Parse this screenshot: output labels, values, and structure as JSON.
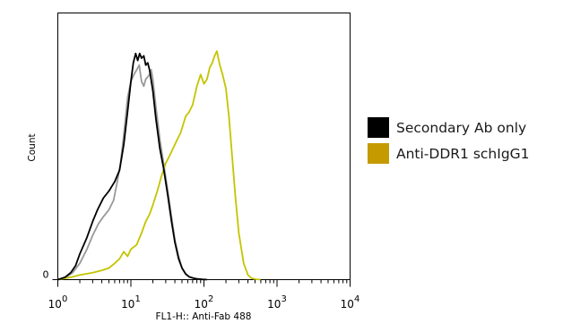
{
  "chart_data": {
    "type": "line",
    "title": "",
    "xlabel": "FL1-H:: Anti-Fab 488",
    "ylabel": "Count",
    "x_scale": "log",
    "xlim": [
      1,
      10000
    ],
    "x_ticks": [
      {
        "value": 1,
        "base": "10",
        "exp": "0"
      },
      {
        "value": 10,
        "base": "10",
        "exp": "1"
      },
      {
        "value": 100,
        "base": "10",
        "exp": "2"
      },
      {
        "value": 1000,
        "base": "10",
        "exp": "3"
      },
      {
        "value": 10000,
        "base": "10",
        "exp": "4"
      }
    ],
    "ylim": [
      0,
      100
    ],
    "y_ticks": [
      {
        "value": 0,
        "label": "0"
      }
    ],
    "grid": false,
    "legend_placement": "right",
    "series": [
      {
        "name": "Secondary Ab only",
        "color": "#000000",
        "x": [
          1.0,
          1.25,
          1.5,
          1.75,
          2.0,
          2.5,
          3.0,
          3.5,
          4.2,
          5.0,
          6.0,
          7.0,
          8.0,
          9.0,
          10.0,
          10.8,
          11.6,
          12.4,
          13.2,
          14.0,
          15.0,
          16.0,
          17.0,
          18.0,
          20.0,
          22.0,
          25.0,
          28.0,
          32.0,
          36.0,
          40.0,
          45.0,
          50.0,
          56.0,
          63.0,
          72.0,
          82.0,
          95.0,
          110.0
        ],
        "y": [
          0,
          1,
          3,
          6,
          11,
          18,
          25,
          30,
          35,
          38,
          42,
          47,
          58,
          72,
          85,
          93,
          97,
          94,
          97,
          95,
          96,
          92,
          93,
          90,
          81,
          69,
          56,
          48,
          36,
          25,
          16,
          9,
          5,
          2.5,
          1.2,
          0.6,
          0.3,
          0.1,
          0
        ]
      },
      {
        "name": "",
        "color": "#999999",
        "x": [
          1.0,
          1.3,
          1.6,
          2.0,
          2.5,
          3.0,
          3.6,
          4.2,
          5.0,
          5.8,
          6.5,
          7.2,
          8.0,
          9.0,
          10.0,
          11.0,
          12.0,
          13.0,
          14.0,
          15.0,
          16.0,
          17.0,
          18.0,
          19.0,
          20.0,
          22.0,
          25.0,
          28.0,
          32.0,
          36.0,
          40.0,
          45.0,
          50.0,
          56.0,
          63.0,
          72.0,
          82.0,
          95.0
        ],
        "y": [
          0,
          1,
          3,
          7,
          13,
          19,
          24,
          27,
          30,
          34,
          42,
          50,
          62,
          78,
          85,
          88,
          90,
          92,
          85,
          83,
          86,
          87,
          88,
          90,
          86,
          74,
          60,
          50,
          38,
          27,
          17,
          10,
          5,
          2.5,
          1.2,
          0.6,
          0.2,
          0
        ]
      },
      {
        "name": "Anti-DDR1 schIgG1",
        "color": "#c4c400",
        "x": [
          1.0,
          1.5,
          2.0,
          3.0,
          4.0,
          5.0,
          6.0,
          7.0,
          8.0,
          9.0,
          10.0,
          12.0,
          14.0,
          16.0,
          18.0,
          20.0,
          23.0,
          26.0,
          30.0,
          35.0,
          40.0,
          48.0,
          56.0,
          63.0,
          70.0,
          80.0,
          90.0,
          100.0,
          110.0,
          120.0,
          130.0,
          140.0,
          150.0,
          165.0,
          180.0,
          200.0,
          220.0,
          240.0,
          270.0,
          300.0,
          350.0,
          400.0,
          450.0,
          500.0,
          600.0
        ],
        "y": [
          0,
          1,
          2,
          3,
          4,
          5,
          7,
          9,
          12,
          10,
          13,
          15,
          20,
          25,
          28,
          32,
          38,
          44,
          50,
          54,
          58,
          63,
          70,
          72,
          75,
          83,
          88,
          84,
          86,
          91,
          93,
          96,
          98,
          92,
          88,
          82,
          70,
          55,
          35,
          20,
          7,
          2,
          0.6,
          0.2,
          0
        ]
      }
    ]
  }
}
